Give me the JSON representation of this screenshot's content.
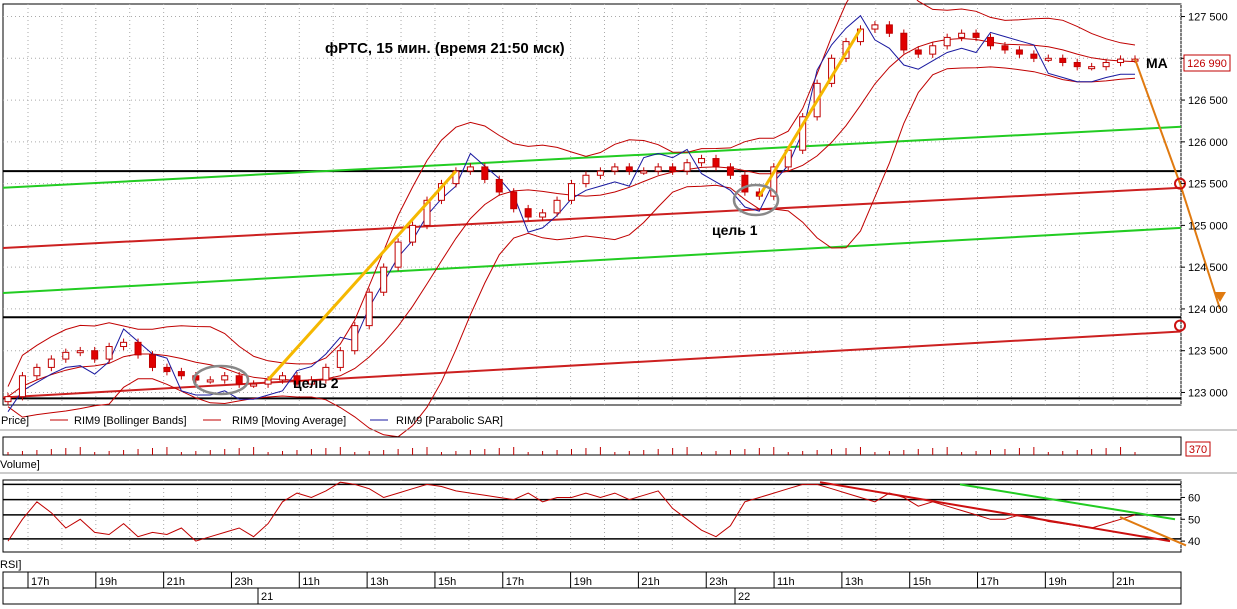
{
  "chart_data": {
    "type": "candlestick",
    "title": "фРТС,  15 мин.  (время 21:50 мск)",
    "annotations": {
      "target1": "цель 1",
      "target2": "цель 2",
      "ma": "MA"
    },
    "price_axis": {
      "ylim": [
        122850,
        127650
      ],
      "ticks": [
        "127 500",
        "127 000",
        "126 500",
        "126 000",
        "125 500",
        "125 000",
        "124 500",
        "124 000",
        "123 500",
        "123 000"
      ],
      "tick_values": [
        127500,
        127000,
        126500,
        126000,
        125500,
        125000,
        124500,
        124000,
        123500,
        123000
      ],
      "last_price": 126990,
      "last_price_label": "126 990"
    },
    "legend": [
      {
        "label": "Price]",
        "color": "#c00000"
      },
      {
        "label": "RIM9 [Bollinger Bands]",
        "color": "#c00000"
      },
      {
        "label": "RIM9 [Moving Average]",
        "color": "#c00000"
      },
      {
        "label": "RIM9 [Parabolic SAR]",
        "color": "#1a1aa0"
      }
    ],
    "volume": {
      "label": "Volume]",
      "value_label": "370"
    },
    "rsi": {
      "label": "RSI]",
      "ylim": [
        35,
        68
      ],
      "ticks": [
        "60",
        "50",
        "40"
      ],
      "tick_values": [
        60,
        50,
        40
      ],
      "levels": [
        66,
        59,
        52,
        41
      ]
    },
    "time_axis": {
      "hours": [
        "17h",
        "19h",
        "21h",
        "23h",
        "11h",
        "13h",
        "15h",
        "17h",
        "19h",
        "21h",
        "23h",
        "11h",
        "13h",
        "15h",
        "17h",
        "19h",
        "21h"
      ],
      "days": [
        "21",
        "22"
      ]
    },
    "close_series": [
      122950,
      123200,
      123300,
      123400,
      123480,
      123500,
      123400,
      123550,
      123600,
      123450,
      123300,
      123250,
      123200,
      123150,
      123150,
      123200,
      123100,
      123100,
      123150,
      123200,
      123100,
      123150,
      123300,
      123500,
      123800,
      124200,
      124500,
      124800,
      125000,
      125300,
      125500,
      125650,
      125700,
      125550,
      125400,
      125200,
      125100,
      125150,
      125300,
      125500,
      125600,
      125650,
      125700,
      125650,
      125650,
      125700,
      125650,
      125750,
      125800,
      125700,
      125600,
      125400,
      125350,
      125700,
      125900,
      126300,
      126700,
      127000,
      127200,
      127350,
      127400,
      127300,
      127100,
      127050,
      127150,
      127250,
      127300,
      127250,
      127150,
      127100,
      127050,
      127000,
      127000,
      126950,
      126900,
      126900,
      126950,
      126990,
      126990
    ],
    "horizontal_levels": [
      125650,
      123900,
      122930
    ],
    "sr_lines": [
      125650,
      123900
    ],
    "channels": [
      {
        "name": "green upper",
        "color": "#22cc22",
        "from": 125450,
        "to": 126180
      },
      {
        "name": "red middle",
        "color": "#cc2020",
        "from": 124730,
        "to": 125450
      },
      {
        "name": "green lower",
        "color": "#22cc22",
        "from": 124190,
        "to": 124970
      },
      {
        "name": "red lower",
        "color": "#cc2020",
        "from": 122940,
        "to": 123730
      }
    ],
    "forecast_levels": [
      125500,
      123800
    ],
    "rsi_series": [
      40,
      50,
      58,
      53,
      46,
      50,
      44,
      43,
      48,
      42,
      44,
      43,
      46,
      40,
      42,
      44,
      46,
      42,
      48,
      58,
      62,
      60,
      63,
      67,
      66,
      64,
      60,
      62,
      64,
      66,
      65,
      63,
      62,
      61,
      60,
      59,
      62,
      58,
      60,
      60,
      62,
      60,
      62,
      59,
      61,
      63,
      55,
      50,
      45,
      42,
      47,
      58,
      60,
      62,
      64,
      66,
      66,
      64,
      62,
      60,
      58,
      62,
      60,
      56,
      58,
      56,
      54,
      52,
      50,
      50,
      52,
      51,
      49,
      48,
      47,
      46,
      48,
      50,
      52
    ],
    "rsi_trendlines": [
      {
        "color": "#cc1010",
        "from": 67,
        "to": 40
      },
      {
        "color": "#22cc22",
        "from": 66,
        "to": 50
      }
    ]
  }
}
